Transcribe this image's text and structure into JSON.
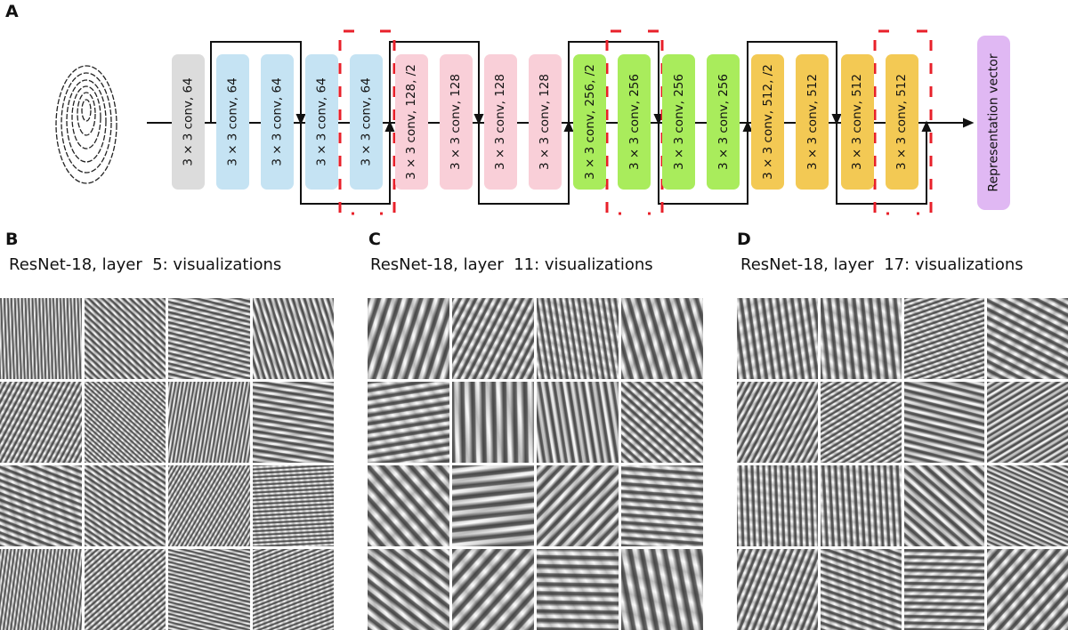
{
  "panel_a": {
    "label": "A",
    "blocks": [
      {
        "text": "3 × 3 conv, 64",
        "color": "#dcdcdc"
      },
      {
        "text": "3 × 3 conv, 64",
        "color": "#c5e3f3"
      },
      {
        "text": "3 × 3 conv, 64",
        "color": "#c5e3f3"
      },
      {
        "text": "3 × 3 conv, 64",
        "color": "#c5e3f3"
      },
      {
        "text": "3 × 3 conv, 64",
        "color": "#c5e3f3"
      },
      {
        "text": "3 × 3 conv, 128, /2",
        "color": "#f9cfd8"
      },
      {
        "text": "3 × 3 conv, 128",
        "color": "#f9cfd8"
      },
      {
        "text": "3 × 3 conv, 128",
        "color": "#f9cfd8"
      },
      {
        "text": "3 × 3 conv, 128",
        "color": "#f9cfd8"
      },
      {
        "text": "3 × 3 conv, 256, /2",
        "color": "#a9ec5c"
      },
      {
        "text": "3 × 3 conv, 256",
        "color": "#a9ec5c"
      },
      {
        "text": "3 × 3 conv, 256",
        "color": "#a9ec5c"
      },
      {
        "text": "3 × 3 conv, 256",
        "color": "#a9ec5c"
      },
      {
        "text": "3 × 3 conv, 512, /2",
        "color": "#f3c954"
      },
      {
        "text": "3 × 3 conv, 512",
        "color": "#f3c954"
      },
      {
        "text": "3 × 3 conv, 512",
        "color": "#f3c954"
      },
      {
        "text": "3 × 3 conv, 512",
        "color": "#f3c954"
      }
    ],
    "output": {
      "text": "Representation vector",
      "color": "#e0b8f3"
    },
    "highlight_color": "#e8202a"
  },
  "panel_b": {
    "label": "B",
    "title": "ResNet-18, layer  5: visualizations"
  },
  "panel_c": {
    "label": "C",
    "title": "ResNet-18, layer  11: visualizations"
  },
  "panel_d": {
    "label": "D",
    "title": "ResNet-18, layer  17: visualizations"
  }
}
